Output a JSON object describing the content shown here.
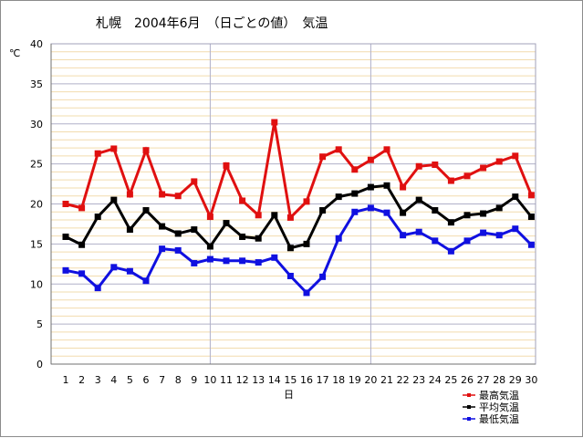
{
  "chart_data": {
    "type": "line",
    "title": "札幌　2004年6月　（日ごとの値）　気温",
    "ylabel": "℃",
    "xlabel": "日",
    "ylim": [
      0,
      40
    ],
    "y_ticks": [
      0,
      5,
      10,
      15,
      20,
      25,
      30,
      35,
      40
    ],
    "x": [
      1,
      2,
      3,
      4,
      5,
      6,
      7,
      8,
      9,
      10,
      11,
      12,
      13,
      14,
      15,
      16,
      17,
      18,
      19,
      20,
      21,
      22,
      23,
      24,
      25,
      26,
      27,
      28,
      29,
      30
    ],
    "grid": true,
    "legend_position": "bottom-right",
    "series": [
      {
        "name": "最高気温",
        "color": "#e01010",
        "values": [
          20.0,
          19.5,
          26.3,
          26.9,
          21.2,
          26.7,
          21.2,
          21.0,
          22.8,
          18.4,
          24.8,
          20.4,
          18.6,
          30.2,
          18.3,
          20.3,
          25.9,
          26.8,
          24.3,
          25.5,
          26.8,
          22.1,
          24.7,
          24.9,
          22.9,
          23.5,
          24.5,
          25.3,
          26.0,
          21.1
        ]
      },
      {
        "name": "平均気温",
        "color": "#000000",
        "values": [
          15.9,
          14.9,
          18.4,
          20.5,
          16.8,
          19.2,
          17.2,
          16.3,
          16.8,
          14.7,
          17.6,
          15.9,
          15.7,
          18.6,
          14.5,
          15.0,
          19.2,
          20.9,
          21.3,
          22.1,
          22.3,
          18.9,
          20.5,
          19.2,
          17.7,
          18.6,
          18.8,
          19.5,
          20.9,
          18.4
        ]
      },
      {
        "name": "最低気温",
        "color": "#1010e0",
        "values": [
          11.7,
          11.3,
          9.5,
          12.1,
          11.6,
          10.4,
          14.4,
          14.2,
          12.6,
          13.1,
          12.9,
          12.9,
          12.7,
          13.3,
          11.0,
          8.9,
          10.9,
          15.7,
          19.0,
          19.5,
          18.9,
          16.1,
          16.5,
          15.4,
          14.1,
          15.4,
          16.4,
          16.1,
          16.9,
          14.9
        ]
      }
    ]
  }
}
